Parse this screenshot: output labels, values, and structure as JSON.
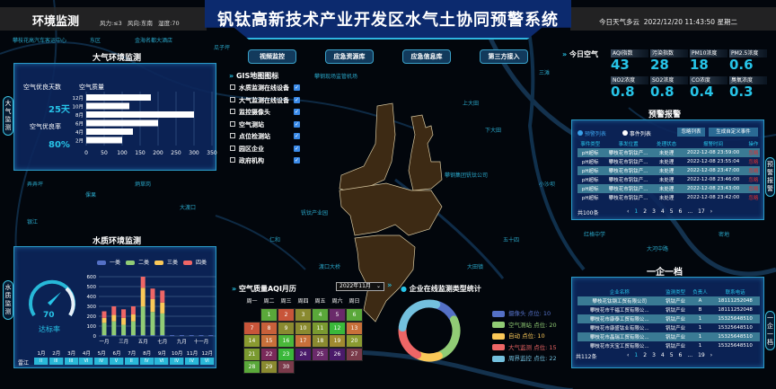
{
  "header": {
    "section": "环境监测",
    "weather_wind": "风力:≤3",
    "weather_dir": "风向:东南",
    "weather_humidity": "湿度:70",
    "title": "钒钛高新技术产业开发区水气土协同预警系统",
    "today": "今日天气多云",
    "datetime": "2022/12/20 11:43:50 星期二"
  },
  "nav": [
    "视频监控",
    "应急资源库",
    "应急信息库",
    "第三方接入"
  ],
  "air_panel": {
    "title": "大气环境监测",
    "side_tab": "大气监测",
    "good_days_label": "空气优良天数",
    "good_days": "25天",
    "good_rate_label": "空气优良率",
    "good_rate": "80%",
    "chart_data": {
      "type": "bar",
      "orientation": "horizontal",
      "title": "空气质量",
      "categories": [
        "12月",
        "10月",
        "8月",
        "6月",
        "4月",
        "2月"
      ],
      "values": [
        180,
        120,
        300,
        200,
        130,
        100
      ],
      "xlim": [
        0,
        350
      ],
      "xticks": [
        0,
        50,
        100,
        150,
        200,
        250,
        300,
        350
      ],
      "grid": true,
      "color": "#ffffff"
    }
  },
  "water_panel": {
    "title": "水质环境监测",
    "side_tab": "水质监测",
    "gauge_value": 70,
    "gauge_label": "达标率",
    "chart_data": {
      "type": "bar",
      "stacked": true,
      "categories": [
        "一月",
        "二月",
        "三月",
        "四月",
        "五月",
        "六月",
        "七月",
        "八月",
        "九月",
        "十月",
        "十一月",
        "十二月"
      ],
      "xtick_labels": [
        "一月",
        "",
        "三月",
        "",
        "五月",
        "",
        "七月",
        "",
        "九月",
        "",
        "十一月",
        ""
      ],
      "ylim": [
        0,
        600
      ],
      "yticks": [
        0,
        100,
        200,
        300,
        400,
        500,
        600
      ],
      "legend": "top",
      "series": [
        {
          "name": "一类",
          "color": "#5470c6",
          "values": [
            8,
            8,
            8,
            8,
            8,
            8,
            8,
            8,
            8,
            8,
            8,
            8
          ]
        },
        {
          "name": "二类",
          "color": "#91cc75",
          "values": [
            125,
            140,
            105,
            140,
            290,
            235,
            220,
            0,
            0,
            0,
            0,
            0
          ]
        },
        {
          "name": "三类",
          "color": "#fac858",
          "values": [
            50,
            65,
            70,
            70,
            190,
            130,
            110,
            0,
            0,
            0,
            0,
            0
          ]
        },
        {
          "name": "四类",
          "color": "#ee6666",
          "values": [
            67,
            87,
            87,
            82,
            112,
            107,
            122,
            0,
            0,
            0,
            0,
            0
          ]
        }
      ]
    },
    "grade_row_label": "雷江",
    "months": [
      "1月",
      "2月",
      "3月",
      "4月",
      "5月",
      "6月",
      "7月",
      "8月",
      "9月",
      "10月",
      "11月",
      "12月"
    ],
    "grades": [
      "II",
      "III",
      "III",
      "VI",
      "IV",
      "V",
      "II",
      "IV",
      "VI",
      "IV",
      "IV",
      "VI"
    ]
  },
  "gis": {
    "title": "GIS地图图标",
    "items": [
      "水质监测在线设备",
      "大气监测在线设备",
      "监控摄像头",
      "空气测站",
      "点位检测站",
      "园区企业",
      "政府机构"
    ]
  },
  "air_today": {
    "title": "今日空气",
    "items": [
      {
        "label": "AQI指数",
        "value": "43"
      },
      {
        "label": "污染指数",
        "value": "28"
      },
      {
        "label": "PM10浓度",
        "value": "18"
      },
      {
        "label": "PM2.5浓度",
        "value": "0.6"
      },
      {
        "label": "NO2浓度",
        "value": "0.8"
      },
      {
        "label": "SO2浓度",
        "value": "0.8"
      },
      {
        "label": "CO浓度",
        "value": "0.4"
      },
      {
        "label": "臭氧浓度",
        "value": "0.3"
      }
    ]
  },
  "alarm": {
    "title": "预警报警",
    "side_tab": "预警报警",
    "tab_active": "预警列表",
    "tab_other": "事件列表",
    "btn_ignore": "忽略列表",
    "btn_custom": "生成自定义事件",
    "columns": [
      "事件类型",
      "事发位置",
      "处理状态",
      "报警时间",
      "操作"
    ],
    "rows": [
      [
        "pH超标",
        "攀枝花市钒钛产...",
        "未处理",
        "2022-12-08 23:59:00",
        "忽略"
      ],
      [
        "pH超标",
        "攀枝花市钒钛产...",
        "未处理",
        "2022-12-08 23:55:04",
        "忽略"
      ],
      [
        "pH超标",
        "攀枝花市钒钛产...",
        "未处理",
        "2022-12-08 23:47:00",
        "忽略"
      ],
      [
        "pH超标",
        "攀枝花市钒钛产...",
        "未处理",
        "2022-12-08 23:46:00",
        "忽略"
      ],
      [
        "pH超标",
        "攀枝花市钒钛产...",
        "未处理",
        "2022-12-08 23:43:00",
        "忽略"
      ],
      [
        "pH超标",
        "攀枝花市钒钛产...",
        "未处理",
        "2022-12-08 23:42:00",
        "忽略"
      ]
    ],
    "total": "共100条",
    "pages": [
      "‹",
      "1",
      "2",
      "3",
      "4",
      "5",
      "6",
      "...",
      "17",
      "›"
    ]
  },
  "enterprise": {
    "title": "一企一档",
    "side_tab": "一企一档",
    "columns": [
      "企业名称",
      "监测类型",
      "负责人",
      "联系电话"
    ],
    "rows": [
      [
        "攀枝花钛钢工贸有限公司",
        "钒钛产业",
        "A",
        "18111252048"
      ],
      [
        "攀枝花市千福工贸有限公...",
        "钒钛产业",
        "B",
        "18111252048"
      ],
      [
        "攀枝花市康泰工贸有限公...",
        "钒钛产业",
        "1",
        "15325648510"
      ],
      [
        "攀枝花市康盛钛业有限公...",
        "钒钛产业",
        "1",
        "15325648510"
      ],
      [
        "攀枝花市晶瑞工贸有限公...",
        "钒钛产业",
        "1",
        "15325648510"
      ],
      [
        "攀枝花市天宝工贸有限公...",
        "钒钛产业",
        "1",
        "15325648510"
      ]
    ],
    "total": "共112条",
    "pages": [
      "‹",
      "1",
      "2",
      "3",
      "4",
      "5",
      "6",
      "...",
      "19",
      "›"
    ]
  },
  "calendar": {
    "title": "空气质量AQI月历",
    "month_select": "2022年11月",
    "weekdays": [
      "周一",
      "周二",
      "周三",
      "周四",
      "周五",
      "周六",
      "周日"
    ],
    "start_weekday": 1,
    "days": [
      {
        "d": "1",
        "c": "#5aa83a"
      },
      {
        "d": "2",
        "c": "#c8553a"
      },
      {
        "d": "3",
        "c": "#8a8a30"
      },
      {
        "d": "4",
        "c": "#5aa83a"
      },
      {
        "d": "5",
        "c": "#6a2a6a"
      },
      {
        "d": "6",
        "c": "#5aa83a"
      },
      {
        "d": "7",
        "c": "#c8553a"
      },
      {
        "d": "8",
        "c": "#c8603a"
      },
      {
        "d": "9",
        "c": "#8a8a30"
      },
      {
        "d": "10",
        "c": "#8a8a30"
      },
      {
        "d": "11",
        "c": "#7a9a30"
      },
      {
        "d": "12",
        "c": "#3ab83a"
      },
      {
        "d": "13",
        "c": "#c8703a"
      },
      {
        "d": "14",
        "c": "#8a9a30"
      },
      {
        "d": "15",
        "c": "#c8703a"
      },
      {
        "d": "16",
        "c": "#4ab83a"
      },
      {
        "d": "17",
        "c": "#c8703a"
      },
      {
        "d": "18",
        "c": "#8a8a30"
      },
      {
        "d": "19",
        "c": "#a08a30"
      },
      {
        "d": "20",
        "c": "#8a9a30"
      },
      {
        "d": "21",
        "c": "#7a9a30"
      },
      {
        "d": "22",
        "c": "#7a2a5a"
      },
      {
        "d": "23",
        "c": "#3ab83a"
      },
      {
        "d": "24",
        "c": "#4a1a6a"
      },
      {
        "d": "25",
        "c": "#6a2a6a"
      },
      {
        "d": "26",
        "c": "#4a1a6a"
      },
      {
        "d": "27",
        "c": "#7a3a4a"
      },
      {
        "d": "28",
        "c": "#5aa83a"
      },
      {
        "d": "29",
        "c": "#8a8a30"
      },
      {
        "d": "30",
        "c": "#7a3a4a"
      }
    ]
  },
  "monitor_stats": {
    "title": "企业在线监测类型统计",
    "chart_data": {
      "type": "pie",
      "donut": true,
      "series": [
        {
          "name": "摄像头",
          "label": "摄像头 点位: 10",
          "value": 10,
          "color": "#5470c6"
        },
        {
          "name": "空气测站",
          "label": "空气测站 点位: 20",
          "value": 20,
          "color": "#91cc75"
        },
        {
          "name": "自动",
          "label": "自动 点位: 10",
          "value": 10,
          "color": "#fac858"
        },
        {
          "name": "大气监测",
          "label": "大气监测 点位: 15",
          "value": 15,
          "color": "#ee6666"
        },
        {
          "name": "周界监控",
          "label": "周界监控 点位: 22",
          "value": 22,
          "color": "#73c0de"
        }
      ],
      "legend": "right"
    }
  },
  "map_labels": [
    "攀枝花高汽车客运中心",
    "东区",
    "金海名都大酒店",
    "瓜子坪",
    "攀钢现场监管机场",
    "弄弄坪",
    "倮果",
    "炳草岗",
    "大渡口",
    "银江",
    "上大田",
    "下大田",
    "攀钢集团钒钛公司",
    "钒钛产业园",
    "仁和",
    "五十四",
    "红格中学",
    "大河中路",
    "密地",
    "小沙坝",
    "渡口大桥",
    "大田镇",
    "三滩"
  ]
}
